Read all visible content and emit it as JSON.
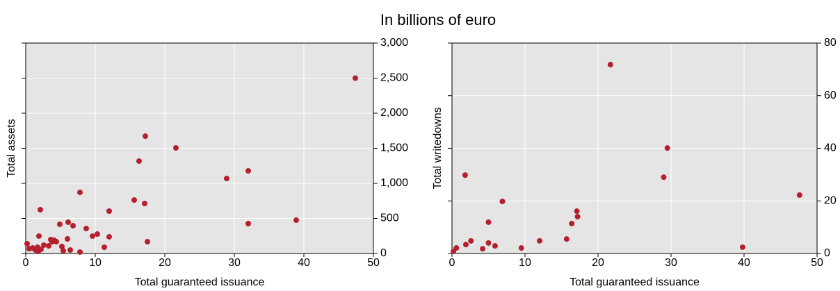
{
  "subtitle": "In billions of euro",
  "chart_data": [
    {
      "type": "scatter",
      "xlabel": "Total guaranteed issuance",
      "ylabel": "Total assets",
      "color": "#b5202e",
      "background": "#e5e5e5",
      "grid": true,
      "xlim": [
        0,
        50
      ],
      "xticks": [
        0,
        10,
        20,
        30,
        40,
        50
      ],
      "ylim": [
        0,
        3000
      ],
      "yticks": [
        0,
        {
          "value": 500,
          "label": "500"
        },
        {
          "value": 1000,
          "label": "1,000"
        },
        {
          "value": 1500,
          "label": "1,500"
        },
        {
          "value": 2000,
          "label": "2,000"
        },
        {
          "value": 2500,
          "label": "2,500"
        },
        {
          "value": 3000,
          "label": "3,000"
        }
      ],
      "x": [
        47.4,
        17.2,
        21.6,
        16.3,
        32.0,
        28.9,
        7.8,
        15.6,
        17.1,
        2.1,
        12.0,
        32.0,
        38.9,
        6.1,
        4.9,
        6.8,
        8.7,
        10.3,
        9.6,
        1.9,
        12.0,
        3.6,
        4.1,
        4.4,
        6.0,
        3.8,
        3.3,
        5.2,
        0.2,
        2.6,
        11.3,
        6.4,
        5.4,
        1.7,
        1.4,
        1.8,
        2.2,
        7.8,
        0.5,
        1.0,
        17.5
      ],
      "y": [
        2500,
        1673,
        1505,
        1317,
        1178,
        1069,
        871,
        762,
        713,
        624,
        604,
        426,
        475,
        446,
        416,
        396,
        356,
        277,
        248,
        248,
        238,
        198,
        188,
        168,
        208,
        168,
        109,
        99,
        139,
        119,
        89,
        49,
        39,
        89,
        49,
        30,
        59,
        20,
        69,
        79,
        168
      ]
    },
    {
      "type": "scatter",
      "xlabel": "Total guaranteed issuance",
      "ylabel": "Total writedowns",
      "color": "#b5202e",
      "background": "#e5e5e5",
      "grid": true,
      "xlim": [
        0,
        50
      ],
      "xticks": [
        0,
        10,
        20,
        30,
        40,
        50
      ],
      "ylim": [
        0,
        80
      ],
      "yticks": [
        0,
        20,
        40,
        60,
        80
      ],
      "x": [
        21.7,
        29.5,
        29.0,
        47.6,
        1.8,
        6.9,
        17.1,
        17.2,
        16.4,
        5.0,
        15.7,
        12.0,
        2.6,
        5.0,
        1.9,
        5.9,
        4.2,
        9.5,
        39.8,
        0.6,
        0.2
      ],
      "y": [
        71.8,
        40.1,
        29.0,
        22.2,
        29.8,
        19.8,
        16.1,
        14.0,
        11.4,
        11.9,
        5.5,
        4.8,
        4.8,
        4.0,
        3.4,
        2.9,
        1.8,
        2.1,
        2.4,
        2.1,
        0.8
      ]
    }
  ]
}
